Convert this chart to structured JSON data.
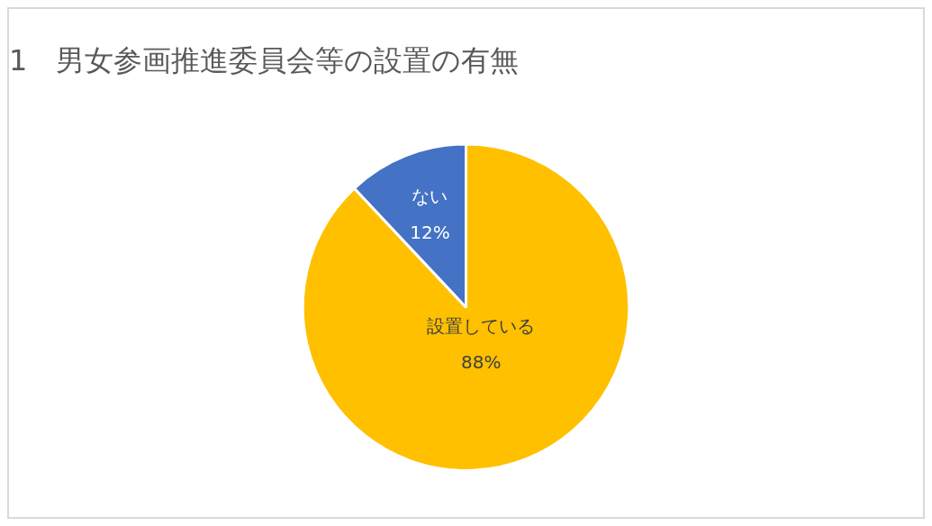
{
  "chart_data": {
    "type": "pie",
    "title": "1　男女参画推進委員会等の設置の有無",
    "categories": [
      "設置している",
      "ない"
    ],
    "values": [
      88,
      12
    ],
    "colors": [
      "#ffc000",
      "#4472c4"
    ],
    "value_labels": [
      "88%",
      "12%"
    ],
    "legend": false
  }
}
